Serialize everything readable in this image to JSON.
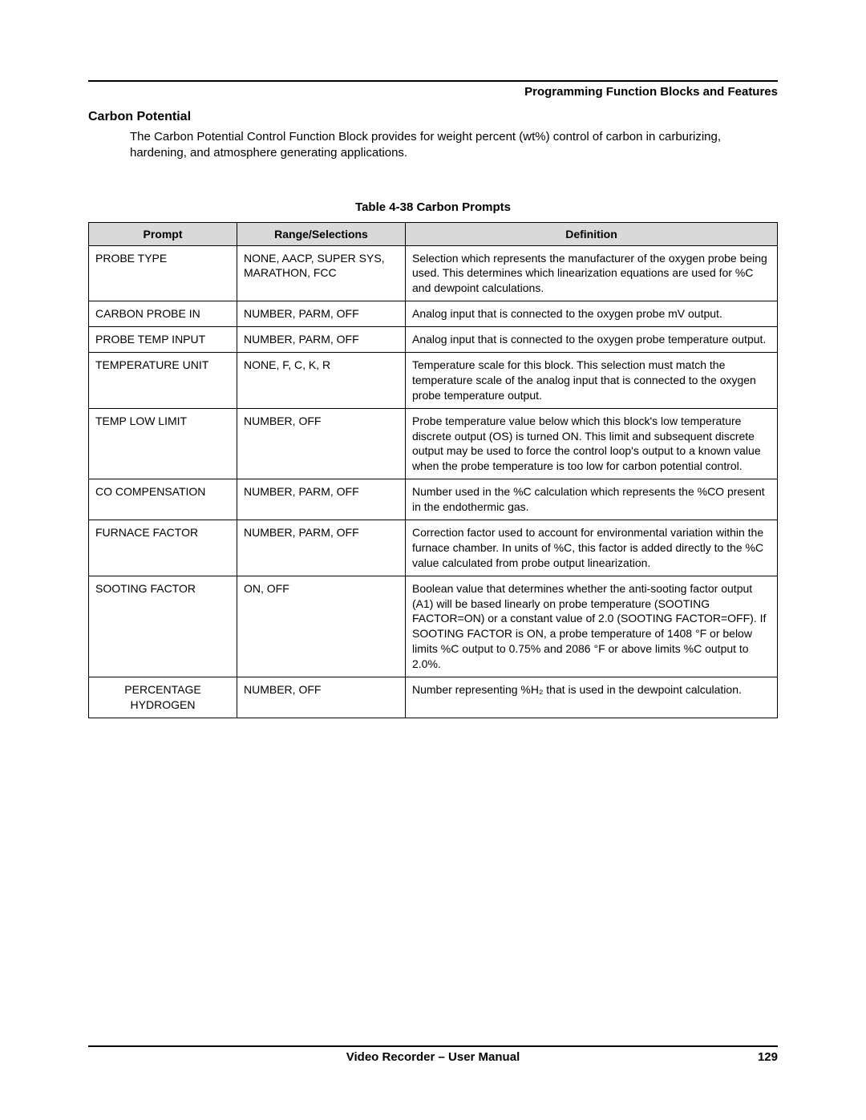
{
  "header": {
    "chapter_title": "Programming Function Blocks and Features"
  },
  "section": {
    "title": "Carbon Potential",
    "intro": "The Carbon Potential Control Function Block provides for weight percent (wt%) control of carbon in carburizing, hardening, and atmosphere generating applications."
  },
  "table": {
    "caption": "Table 4-38   Carbon Prompts",
    "columns": [
      "Prompt",
      "Range/Selections",
      "Definition"
    ],
    "rows": [
      {
        "prompt": "PROBE TYPE",
        "range": "NONE, AACP, SUPER SYS, MARATHON, FCC",
        "definition": "Selection which represents the manufacturer of the oxygen probe being used. This determines which linearization equations are used for %C and dewpoint calculations.",
        "prompt_align": "left"
      },
      {
        "prompt": "CARBON PROBE IN",
        "range": "NUMBER, PARM, OFF",
        "definition": "Analog input that is connected to the oxygen probe mV output.",
        "prompt_align": "left"
      },
      {
        "prompt": "PROBE TEMP INPUT",
        "range": "NUMBER, PARM, OFF",
        "definition": "Analog input that is connected to the oxygen probe temperature output.",
        "prompt_align": "left"
      },
      {
        "prompt": "TEMPERATURE UNIT",
        "range": "NONE, F, C, K, R",
        "definition": "Temperature scale for this block.  This selection must match the temperature scale of the analog input that is connected to the oxygen probe temperature output.",
        "prompt_align": "left"
      },
      {
        "prompt": "TEMP LOW LIMIT",
        "range": "NUMBER, OFF",
        "definition": "Probe temperature value below which this block's low temperature discrete output (OS) is turned ON.  This limit and subsequent discrete output may be used to force the control loop's output to a known value when the probe temperature is too low for carbon potential control.",
        "prompt_align": "left"
      },
      {
        "prompt": "CO COMPENSATION",
        "range": "NUMBER, PARM, OFF",
        "definition": "Number used in the %C calculation which represents the %CO present in the endothermic gas.",
        "prompt_align": "left"
      },
      {
        "prompt": "FURNACE FACTOR",
        "range": "NUMBER, PARM, OFF",
        "definition": "Correction factor used to account for environmental variation within the furnace chamber. In units of %C, this factor is added directly to the %C value calculated from probe output linearization.",
        "prompt_align": "left"
      },
      {
        "prompt": "SOOTING FACTOR",
        "range": "ON, OFF",
        "definition": "Boolean value that determines whether the anti-sooting factor output (A1) will be based linearly on probe temperature (SOOTING FACTOR=ON) or a constant value of 2.0 (SOOTING FACTOR=OFF).  If SOOTING FACTOR is ON, a probe temperature of 1408 °F or below limits %C output to 0.75% and 2086 °F or above limits %C output to 2.0%.",
        "prompt_align": "left"
      },
      {
        "prompt": "PERCENTAGE HYDROGEN",
        "range": "NUMBER, OFF",
        "definition": "Number representing %H₂ that is used in the dewpoint calculation.",
        "prompt_align": "center"
      }
    ]
  },
  "footer": {
    "center": "Video Recorder – User Manual",
    "page_number": "129"
  }
}
